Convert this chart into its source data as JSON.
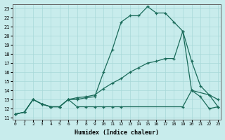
{
  "xlabel": "Humidex (Indice chaleur)",
  "bg_color": "#c8ecec",
  "grid_color": "#a8d8d8",
  "line_color": "#1a6b5a",
  "xlim": [
    -0.3,
    23.3
  ],
  "ylim": [
    10.8,
    23.5
  ],
  "xticks": [
    0,
    1,
    2,
    3,
    4,
    5,
    6,
    7,
    8,
    9,
    10,
    11,
    12,
    13,
    14,
    15,
    16,
    17,
    18,
    19,
    20,
    21,
    22,
    23
  ],
  "yticks": [
    11,
    12,
    13,
    14,
    15,
    16,
    17,
    18,
    19,
    20,
    21,
    22,
    23
  ],
  "line1_x": [
    0,
    1,
    2,
    3,
    4,
    5,
    6,
    7,
    8,
    9,
    10,
    11,
    12,
    13,
    14,
    15,
    16,
    17,
    18,
    19,
    20,
    21,
    22,
    23
  ],
  "line1_y": [
    11.4,
    11.6,
    13.0,
    12.5,
    12.2,
    12.2,
    13.0,
    13.0,
    13.2,
    13.3,
    16.0,
    18.5,
    21.5,
    22.2,
    22.2,
    23.2,
    22.5,
    22.5,
    21.5,
    20.5,
    14.0,
    13.3,
    12.0,
    12.2
  ],
  "line2_x": [
    0,
    1,
    2,
    3,
    4,
    5,
    6,
    7,
    8,
    9,
    10,
    11,
    12,
    13,
    14,
    15,
    16,
    17,
    18,
    19,
    20,
    21,
    22,
    23
  ],
  "line2_y": [
    11.4,
    11.6,
    13.0,
    12.5,
    12.2,
    12.2,
    13.0,
    13.2,
    13.3,
    13.5,
    14.2,
    14.8,
    15.3,
    16.0,
    16.5,
    17.0,
    17.2,
    17.5,
    17.5,
    20.5,
    17.2,
    14.5,
    13.5,
    13.0
  ],
  "line3_x": [
    0,
    1,
    2,
    3,
    4,
    5,
    6,
    7,
    8,
    9,
    10,
    11,
    12,
    19,
    20,
    22,
    23
  ],
  "line3_y": [
    11.4,
    11.6,
    13.0,
    12.5,
    12.2,
    12.2,
    13.0,
    12.2,
    12.2,
    12.2,
    12.2,
    12.2,
    12.2,
    12.2,
    14.0,
    13.5,
    12.2
  ]
}
